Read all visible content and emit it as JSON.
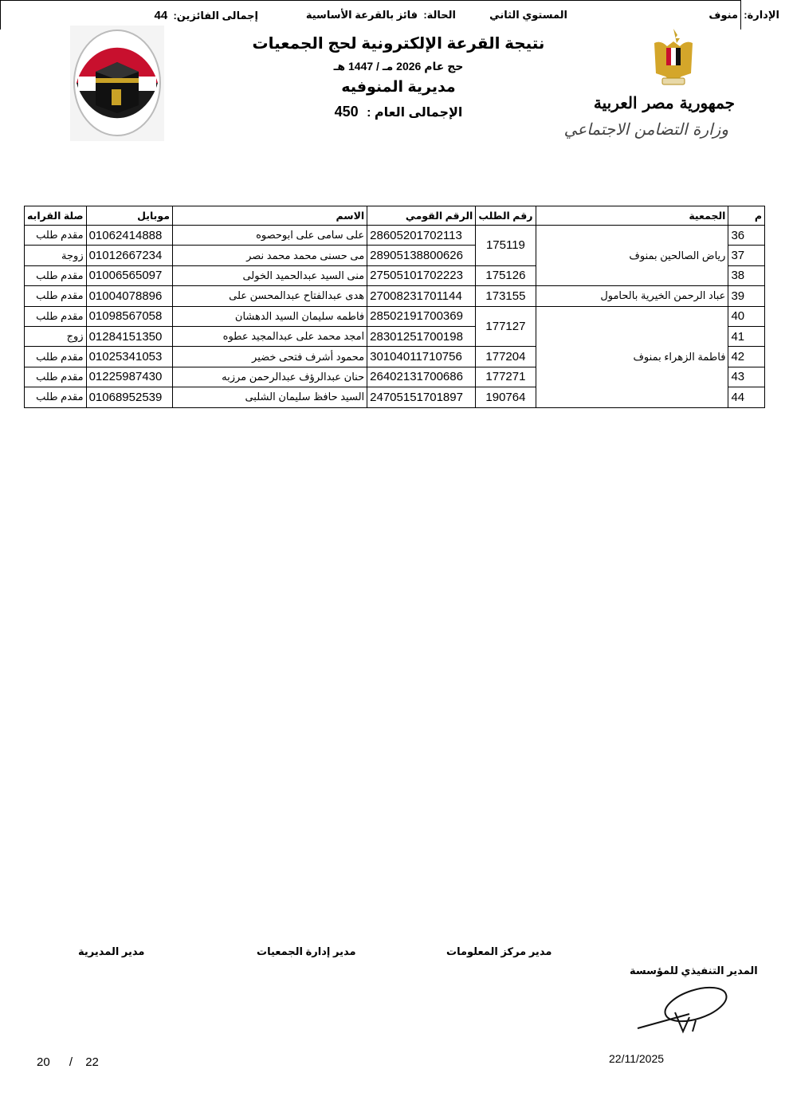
{
  "header": {
    "title": "نتيجة القرعة الإلكترونية لحج الجمعيات",
    "subtitle": "حج عام 2026 مـ / 1447 هـ",
    "directorate": "مديرية المنوفيه",
    "total_label": "الإجمالى العام :",
    "total_value": "450",
    "right_logo": {
      "line1": "جمهورية مصر العربية",
      "line2": "وزارة التضامن الاجتماعي"
    },
    "left_logo": {
      "icon": "kaaba-logo-icon",
      "colors": [
        "#c8102e",
        "#000000",
        "#ffffff"
      ]
    }
  },
  "info": {
    "admin_label": "الإدارة:",
    "admin_value": "منوف",
    "level": "المستوي الثاني",
    "status_label": "الحالة:",
    "status_value": "فائز بالقرعة الأساسية",
    "winners_label": "إجمالى الفائزين:",
    "winners_value": "44"
  },
  "table": {
    "columns": [
      "م",
      "الجمعية",
      "رقم الطلب",
      "الرقم القومي",
      "الاسم",
      "موبايل",
      "صلة القرابه"
    ],
    "rows": [
      {
        "m": "36",
        "association": "رياض الصالحين بمنوف",
        "request": "175119",
        "national_id": "28605201702113",
        "name": "على سامى على ابوحصوه",
        "mobile": "01062414888",
        "relation": "مقدم طلب"
      },
      {
        "m": "37",
        "association": "رياض الصالحين بمنوف",
        "request": "175119",
        "national_id": "28905138800626",
        "name": "مى حسنى محمد محمد نصر",
        "mobile": "01012667234",
        "relation": "زوجة"
      },
      {
        "m": "38",
        "association": "رياض الصالحين بمنوف",
        "request": "175126",
        "national_id": "27505101702223",
        "name": "منى السيد عبدالحميد الخولى",
        "mobile": "01006565097",
        "relation": "مقدم طلب"
      },
      {
        "m": "39",
        "association": "عباد الرحمن الخيرية بالحامول",
        "request": "173155",
        "national_id": "27008231701144",
        "name": "هدى عبدالفتاح عبدالمحسن على",
        "mobile": "01004078896",
        "relation": "مقدم طلب"
      },
      {
        "m": "40",
        "association": "فاطمة الزهراء بمنوف",
        "request": "177127",
        "national_id": "28502191700369",
        "name": "فاطمه سليمان السيد الدهشان",
        "mobile": "01098567058",
        "relation": "مقدم طلب"
      },
      {
        "m": "41",
        "association": "فاطمة الزهراء بمنوف",
        "request": "177127",
        "national_id": "28301251700198",
        "name": "امجد محمد على عبدالمجيد عطوه",
        "mobile": "01284151350",
        "relation": "زوج"
      },
      {
        "m": "42",
        "association": "فاطمة الزهراء بمنوف",
        "request": "177204",
        "national_id": "30104011710756",
        "name": "محمود أشرف فتحى خضير",
        "mobile": "01025341053",
        "relation": "مقدم طلب"
      },
      {
        "m": "43",
        "association": "فاطمة الزهراء بمنوف",
        "request": "177271",
        "national_id": "26402131700686",
        "name": "حنان عبدالرؤف عبدالرحمن مرزبه",
        "mobile": "01225987430",
        "relation": "مقدم طلب"
      },
      {
        "m": "44",
        "association": "فاطمة الزهراء بمنوف",
        "request": "190764",
        "national_id": "24705151701897",
        "name": "السيد حافظ سليمان الشلبى",
        "mobile": "01068952539",
        "relation": "مقدم طلب"
      }
    ]
  },
  "footer": {
    "sig_directorate": "مدير المديرية",
    "sig_associations": "مدير إدارة الجمعيات",
    "sig_info_center": "مدير مركز المعلومات",
    "sig_executive": "المدير التنفيذي للمؤسسة",
    "date": "22/11/2025",
    "page_current": "20",
    "page_total": "22"
  }
}
